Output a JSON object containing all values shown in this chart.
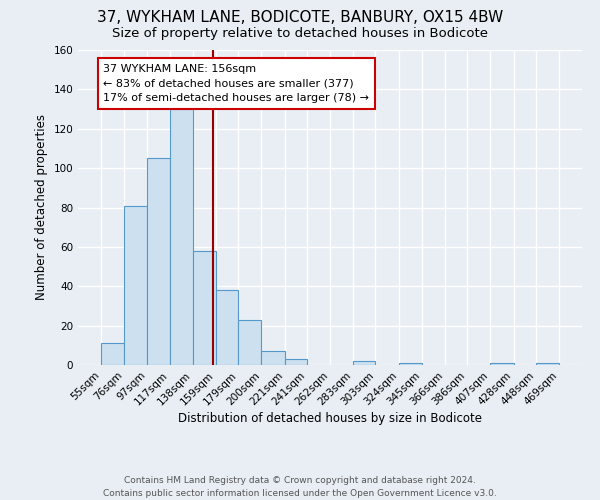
{
  "title": "37, WYKHAM LANE, BODICOTE, BANBURY, OX15 4BW",
  "subtitle": "Size of property relative to detached houses in Bodicote",
  "xlabel": "Distribution of detached houses by size in Bodicote",
  "ylabel": "Number of detached properties",
  "footer_lines": [
    "Contains HM Land Registry data © Crown copyright and database right 2024.",
    "Contains public sector information licensed under the Open Government Licence v3.0."
  ],
  "bin_edges": [
    55,
    76,
    97,
    117,
    138,
    159,
    179,
    200,
    221,
    241,
    262,
    283,
    303,
    324,
    345,
    366,
    386,
    407,
    428,
    448,
    469
  ],
  "bin_counts": [
    11,
    81,
    105,
    130,
    58,
    38,
    23,
    7,
    3,
    0,
    0,
    2,
    0,
    1,
    0,
    0,
    0,
    1,
    0,
    1
  ],
  "bar_facecolor": "#cce0f0",
  "bar_edgecolor": "#5599cc",
  "vline_x": 156,
  "vline_color": "#990000",
  "annotation_text": "37 WYKHAM LANE: 156sqm\n← 83% of detached houses are smaller (377)\n17% of semi-detached houses are larger (78) →",
  "annotation_box_edgecolor": "#cc0000",
  "annotation_box_facecolor": "#ffffff",
  "ylim": [
    0,
    160
  ],
  "yticks": [
    0,
    20,
    40,
    60,
    80,
    100,
    120,
    140,
    160
  ],
  "background_color": "#e8eef4",
  "plot_bg_color": "#e8eef4",
  "grid_color": "#ffffff",
  "title_fontsize": 11,
  "subtitle_fontsize": 9.5,
  "axis_label_fontsize": 8.5,
  "tick_fontsize": 7.5,
  "annotation_fontsize": 8,
  "footer_fontsize": 6.5
}
